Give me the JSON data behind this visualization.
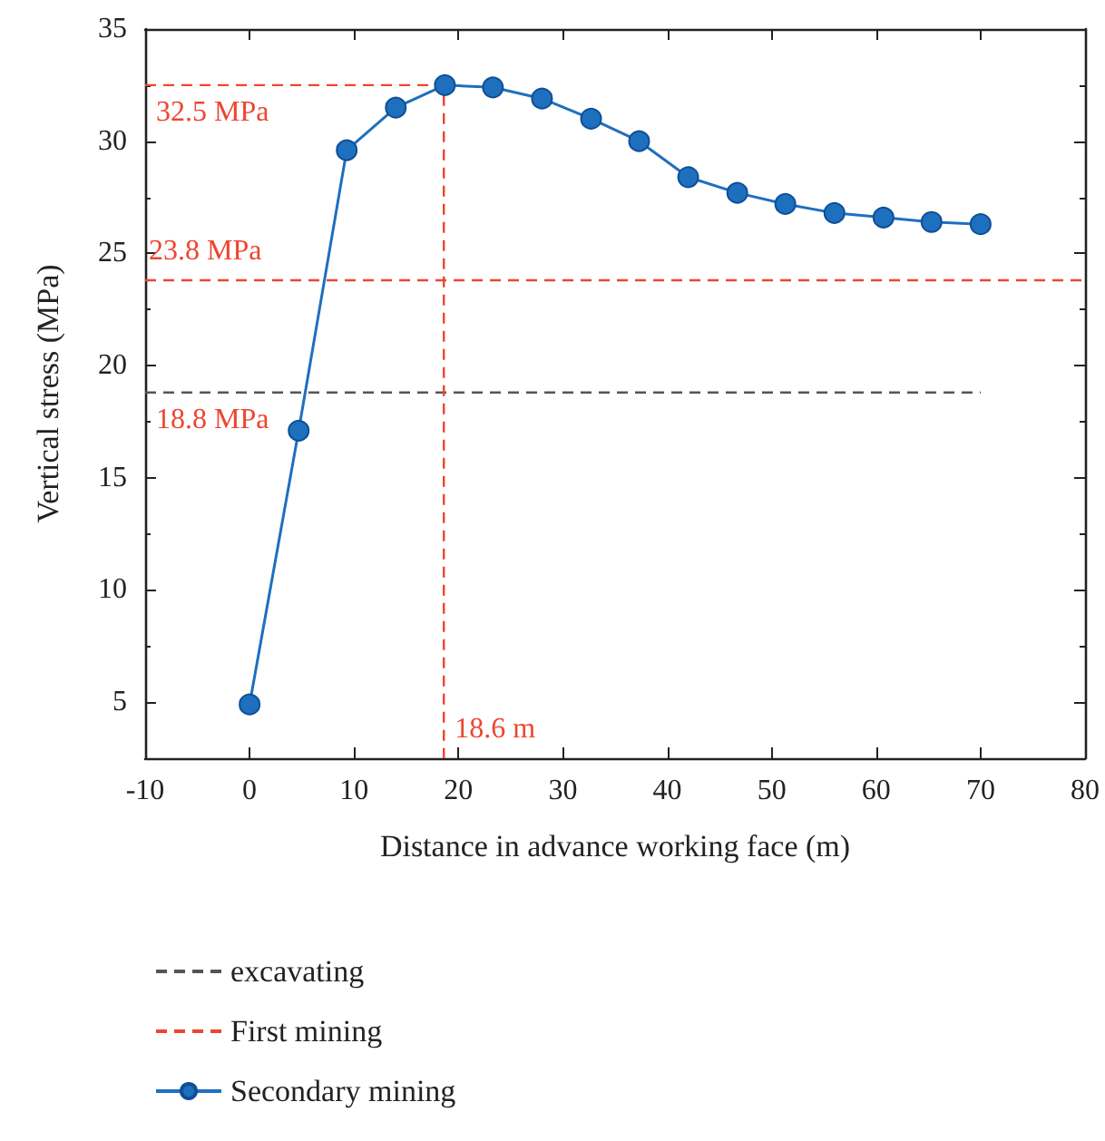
{
  "chart_data": {
    "type": "line",
    "xlabel": "Distance in advance working face (m)",
    "ylabel": "Vertical stress (MPa)",
    "xlim": [
      -10,
      80
    ],
    "xticks": [
      -10,
      0,
      10,
      20,
      30,
      40,
      50,
      60,
      70,
      80
    ],
    "ylim": [
      2.5,
      35
    ],
    "yticks": [
      5,
      10,
      15,
      20,
      25,
      30,
      35
    ],
    "series": [
      {
        "name": "excavating",
        "color": "#555555",
        "line_style": "dashed",
        "marker": "none",
        "x": [
          -10,
          70
        ],
        "values": [
          18.8,
          18.8
        ]
      },
      {
        "name": "First mining",
        "color": "#ee4530",
        "line_style": "dashed",
        "marker": "none",
        "x": [
          -10,
          18.6,
          18.6
        ],
        "values": [
          32.5,
          32.5,
          2.5
        ]
      },
      {
        "name": "Secondary mining",
        "color": "#1f6fbf",
        "line_style": "solid",
        "marker": "circle",
        "x": [
          0,
          4.7,
          9.3,
          14,
          18.7,
          23.3,
          28,
          32.7,
          37.3,
          42,
          46.7,
          51.3,
          56,
          60.7,
          65.3,
          70
        ],
        "values": [
          4.9,
          17.1,
          29.6,
          31.5,
          32.5,
          32.4,
          31.9,
          31.0,
          30.0,
          28.4,
          27.7,
          27.2,
          26.8,
          26.6,
          26.4,
          26.3
        ]
      }
    ],
    "ref_lines": [
      {
        "axis": "y",
        "value": 23.8,
        "label": "23.8 MPa",
        "color": "#ee4530",
        "line_style": "dashed"
      }
    ],
    "annotations": [
      {
        "text": "32.5 MPa",
        "y": 32.5
      },
      {
        "text": "18.8 MPa",
        "y": 18.8
      },
      {
        "text": "18.6 m",
        "x": 18.6
      }
    ],
    "legend": "bottom left",
    "grid": false
  }
}
